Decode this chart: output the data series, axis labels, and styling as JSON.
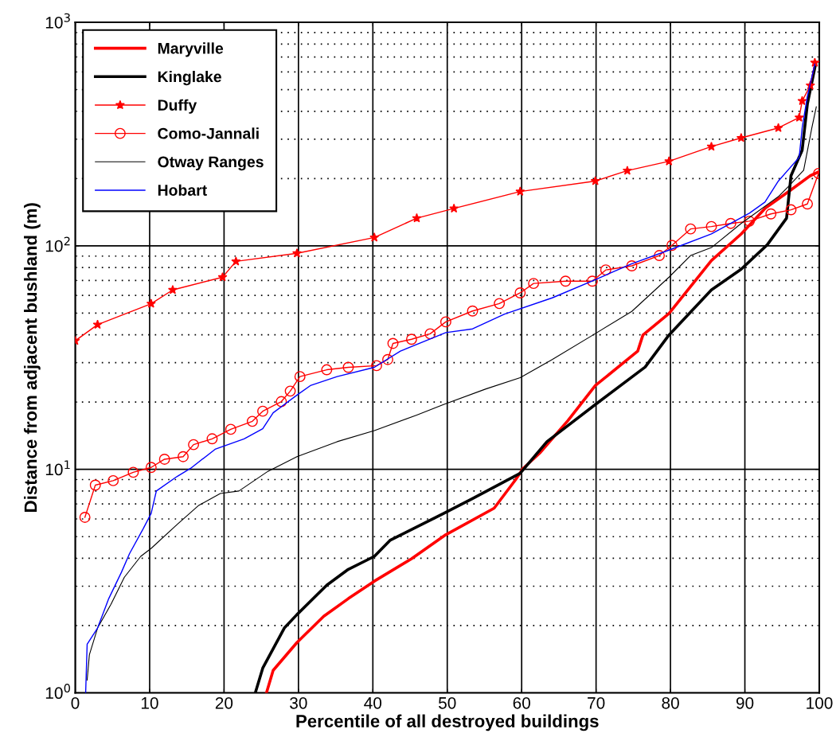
{
  "chart_data": {
    "type": "line",
    "xlabel": "Percentile of all destroyed buildings",
    "ylabel": "Distance from adjacent bushland (m)",
    "log": "y",
    "grid": true,
    "legend": "top left",
    "xlim": [
      0,
      100
    ],
    "xticks": [
      0,
      10,
      20,
      30,
      40,
      50,
      60,
      70,
      80,
      90,
      100
    ],
    "ylim": [
      1,
      1000
    ],
    "yticks": [
      {
        "value": 1,
        "label": "10$^{0}$"
      },
      {
        "value": 10,
        "label": "10$^{1}$"
      },
      {
        "value": 100,
        "label": "10$^{2}$"
      },
      {
        "value": 1000,
        "label": "10$^{3}$"
      }
    ],
    "series": [
      {
        "name": "Maryville",
        "color": "#ff0000",
        "marker": "none",
        "x": [
          25.7,
          26.6,
          29.8,
          33.4,
          36.7,
          40.2,
          45.2,
          49.8,
          56.3,
          59.2,
          60.2,
          62.4,
          66.2,
          69.9,
          75.6,
          76.3,
          79.8,
          85.5,
          89.5,
          92.7,
          96.2,
          98.8,
          100
        ],
        "values": [
          1,
          1.26,
          1.68,
          2.2,
          2.64,
          3.16,
          3.98,
          5.1,
          6.7,
          9.0,
          10.1,
          11.8,
          16.5,
          23.7,
          33.8,
          39.9,
          49.8,
          85.9,
          113,
          147,
          178,
          206,
          215
        ]
      },
      {
        "name": "Kinglake",
        "color": "#000000",
        "marker": "none",
        "x": [
          24.2,
          25.2,
          28.1,
          29.8,
          33.8,
          36.7,
          40.2,
          42.3,
          49.5,
          53.4,
          59.8,
          63.4,
          69.9,
          76.6,
          79.8,
          85.5,
          89.5,
          93.0,
          95.6,
          96.2,
          97.7,
          98.4,
          99.5
        ],
        "values": [
          1,
          1.29,
          1.95,
          2.24,
          3.03,
          3.57,
          4.08,
          4.81,
          6.35,
          7.4,
          9.6,
          13.3,
          19.5,
          28.7,
          39.9,
          63.5,
          78.6,
          101,
          133,
          206,
          268,
          431,
          650
        ]
      },
      {
        "name": "Duffy",
        "color": "#ff0000",
        "marker": "star",
        "x": [
          0,
          3.0,
          10.2,
          13.1,
          19.8,
          21.6,
          29.8,
          40.2,
          45.9,
          50.9,
          59.8,
          69.9,
          74.2,
          79.8,
          85.5,
          89.5,
          94.5,
          97.3,
          97.7,
          98.8,
          99.4
        ],
        "values": [
          37.6,
          44.4,
          55.1,
          63.5,
          72.4,
          85.2,
          92.6,
          109,
          133,
          147,
          175,
          195,
          217,
          239,
          278,
          304,
          337,
          375,
          445,
          522,
          660
        ]
      },
      {
        "name": "Como-Jannali",
        "color": "#ff0000",
        "marker": "circle",
        "x": [
          1.3,
          2.7,
          5.1,
          7.8,
          10.2,
          12,
          14.5,
          15.9,
          18.4,
          20.9,
          23.8,
          25.2,
          27.7,
          28.9,
          30.2,
          33.8,
          36.7,
          40.5,
          42,
          42.7,
          45.2,
          47.7,
          49.8,
          53.4,
          57,
          59.8,
          61.6,
          65.9,
          69.5,
          71.3,
          74.8,
          78.5,
          80.2,
          82.7,
          85.5,
          88.1,
          90.6,
          93.5,
          96.2,
          98.4,
          99.9
        ],
        "values": [
          6.1,
          8.5,
          8.9,
          9.7,
          10.2,
          11.1,
          11.4,
          12.9,
          13.7,
          15.1,
          16.4,
          18.2,
          20.1,
          22.4,
          26.0,
          27.9,
          28.6,
          29.1,
          31.0,
          36.6,
          38.2,
          40.4,
          45.7,
          51.1,
          55.2,
          61.6,
          67.9,
          69.5,
          69.5,
          78.0,
          81.4,
          90.5,
          100.5,
          119,
          122,
          126,
          129,
          139,
          145,
          154,
          211
        ]
      },
      {
        "name": "Otway Ranges",
        "color": "#000000",
        "marker": "none",
        "x": [
          1.6,
          1.9,
          3.0,
          4.8,
          6.6,
          8.8,
          10.2,
          13.7,
          16.6,
          19.5,
          22,
          25.9,
          29.8,
          35.2,
          40.2,
          45.9,
          49.5,
          55.2,
          59.8,
          64.1,
          69.9,
          74.8,
          79.8,
          82.7,
          85.5,
          89.5,
          94.5,
          95.9,
          97.9,
          99,
          99.6
        ],
        "values": [
          1.14,
          1.48,
          1.95,
          2.49,
          3.29,
          4.08,
          4.43,
          5.67,
          6.9,
          7.8,
          8.0,
          9.8,
          11.4,
          13.3,
          14.9,
          17.5,
          19.5,
          22.9,
          25.7,
          31,
          40.5,
          50.9,
          72.4,
          90.5,
          98.2,
          126,
          166,
          185,
          218,
          337,
          419
        ]
      },
      {
        "name": "Hobart",
        "color": "#0000ff",
        "marker": "none",
        "x": [
          1.4,
          1.6,
          3.0,
          4.5,
          6.2,
          7.3,
          9.1,
          10.2,
          10.9,
          13.7,
          15.5,
          18.8,
          22.7,
          25.2,
          26.6,
          29.8,
          31.6,
          35.2,
          40.2,
          43.7,
          49.8,
          53.4,
          57.7,
          64.1,
          69.9,
          74.8,
          79.8,
          85.5,
          90.6,
          92.7,
          94.5,
          97.3,
          97.7,
          98.4,
          99.4
        ],
        "values": [
          1,
          1.65,
          1.95,
          2.64,
          3.46,
          4.2,
          5.4,
          6.35,
          8.0,
          9.3,
          10.1,
          12.3,
          13.7,
          15.2,
          17.9,
          21.5,
          23.7,
          26,
          28.6,
          33.8,
          40.9,
          42.5,
          49.5,
          58.5,
          70.6,
          83.2,
          95.7,
          113,
          140,
          157,
          195,
          249,
          337,
          467,
          650
        ]
      }
    ]
  }
}
